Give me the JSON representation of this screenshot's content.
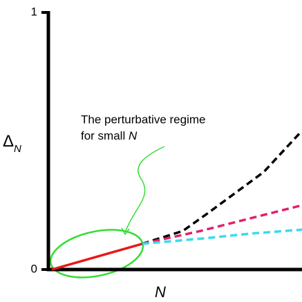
{
  "chart_data": {
    "type": "line",
    "xlabel": "N",
    "ylabel": "Δ",
    "ylabel_sub": "N",
    "annotation": [
      "The perturbative regime",
      "for small",
      "N"
    ],
    "xlim": [
      0,
      1
    ],
    "ylim": [
      0,
      1
    ],
    "yticks": [
      0,
      1
    ],
    "series": [
      {
        "color": "#e81818",
        "dashed": false,
        "x": [
          0.014,
          0.37
        ],
        "values": [
          0,
          0.1
        ]
      },
      {
        "color": "#000000",
        "dashed": true,
        "x": [
          0.37,
          0.53,
          0.63,
          0.74,
          0.85,
          1.0
        ],
        "values": [
          0.1,
          0.15,
          0.22,
          0.3,
          0.38,
          0.54
        ]
      },
      {
        "color": "#e0206a",
        "dashed": true,
        "x": [
          0.37,
          0.6,
          0.8,
          1.0
        ],
        "values": [
          0.1,
          0.15,
          0.2,
          0.25
        ]
      },
      {
        "color": "#33ddee",
        "dashed": true,
        "x": [
          0.37,
          0.6,
          0.8,
          1.0
        ],
        "values": [
          0.1,
          0.12,
          0.14,
          0.155
        ]
      }
    ]
  }
}
